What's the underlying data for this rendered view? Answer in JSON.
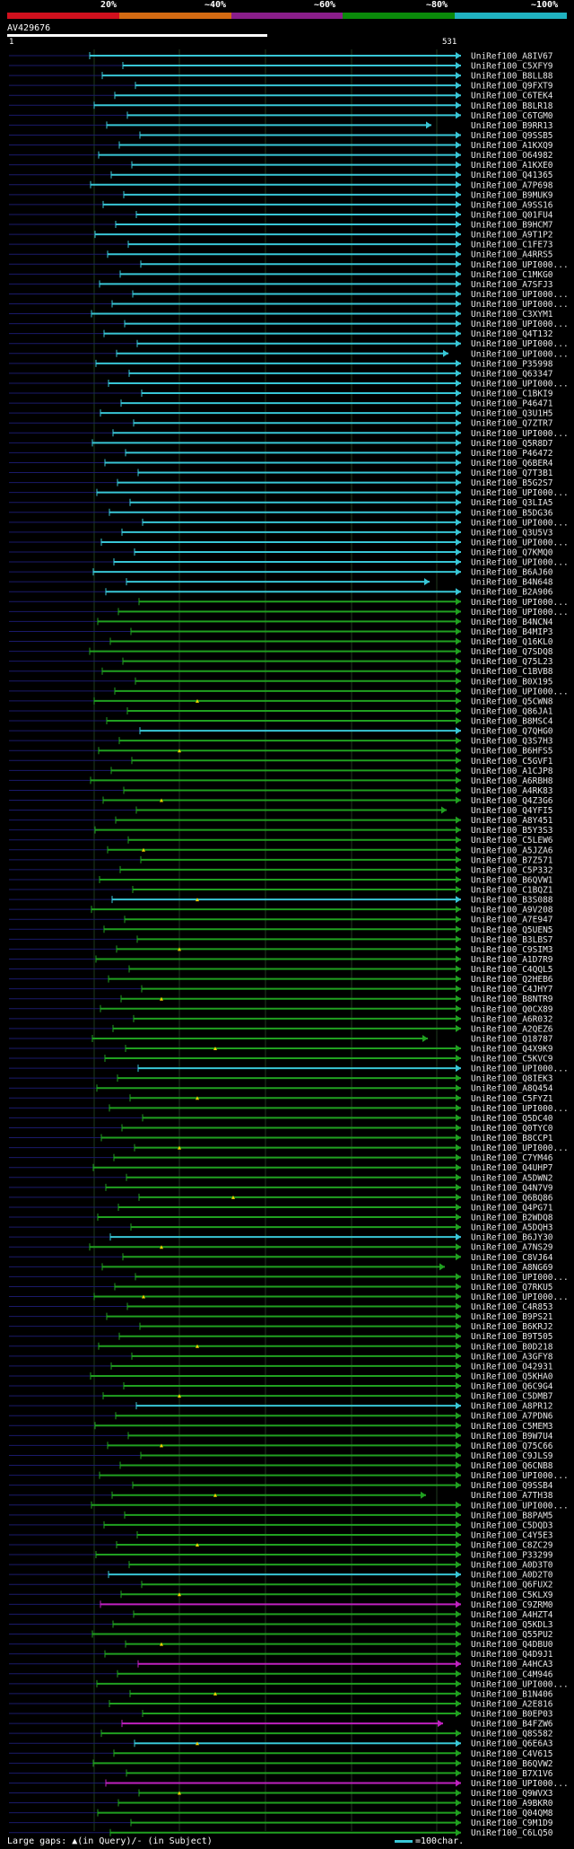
{
  "query": {
    "id": "AV429676",
    "start": "1",
    "end": "531"
  },
  "identity_legend": [
    {
      "label": "20%",
      "color": "#d0101d"
    },
    {
      "label": "~40%",
      "color": "#d46a12"
    },
    {
      "label": "~60%",
      "color": "#8a1e8a"
    },
    {
      "label": "~80%",
      "color": "#0a8a0a"
    },
    {
      "label": "~100%",
      "color": "#20b2c0"
    }
  ],
  "footer": {
    "gaps_text": "Large gaps: ▲(in Query)/- (in Subject)",
    "scale_text": "=100char."
  },
  "hits": [
    "UniRef100_A8IV67",
    "UniRef100_C5XFY9",
    "UniRef100_B8LL88",
    "UniRef100_Q9FXT9",
    "UniRef100_C6TEK4",
    "UniRef100_B8LR18",
    "UniRef100_C6TGM0",
    "UniRef100_B9RR13",
    "UniRef100_Q9SSB5",
    "UniRef100_A1KXQ9",
    "UniRef100_O64982",
    "UniRef100_A1KXE0",
    "UniRef100_Q41365",
    "UniRef100_A7P698",
    "UniRef100_B9MUK9",
    "UniRef100_A9SS16",
    "UniRef100_Q01FU4",
    "UniRef100_B9HCM7",
    "UniRef100_A9T1P2",
    "UniRef100_C1FE73",
    "UniRef100_A4RRS5",
    "UniRef100_UPI000...",
    "UniRef100_C1MKG0",
    "UniRef100_A7SFJ3",
    "UniRef100_UPI000...",
    "UniRef100_UPI000...",
    "UniRef100_C3XYM1",
    "UniRef100_UPI000...",
    "UniRef100_Q4T132",
    "UniRef100_UPI000...",
    "UniRef100_UPI000...",
    "UniRef100_P35998",
    "UniRef100_Q63347",
    "UniRef100_UPI000...",
    "UniRef100_C1BKI9",
    "UniRef100_P46471",
    "UniRef100_Q3U1H5",
    "UniRef100_Q7ZTR7",
    "UniRef100_UPI000...",
    "UniRef100_Q5R8D7",
    "UniRef100_P46472",
    "UniRef100_Q6BER4",
    "UniRef100_Q7T3B1",
    "UniRef100_B5G2S7",
    "UniRef100_UPI000...",
    "UniRef100_Q3LIA5",
    "UniRef100_B5DG36",
    "UniRef100_UPI000...",
    "UniRef100_Q3U5V3",
    "UniRef100_UPI000...",
    "UniRef100_Q7KMQ0",
    "UniRef100_UPI000...",
    "UniRef100_B6AJ60",
    "UniRef100_B4N648",
    "UniRef100_B2A906",
    "UniRef100_UPI000...",
    "UniRef100_UPI000...",
    "UniRef100_B4NCN4",
    "UniRef100_B4MIP3",
    "UniRef100_Q16KL0",
    "UniRef100_Q7SDQ8",
    "UniRef100_Q75L23",
    "UniRef100_C1BVB8",
    "UniRef100_B0X195",
    "UniRef100_UPI000...",
    "UniRef100_Q5CWN8",
    "UniRef100_Q86JA1",
    "UniRef100_B8MSC4",
    "UniRef100_Q7QHG0",
    "UniRef100_Q3S7H3",
    "UniRef100_B6HFS5",
    "UniRef100_C5GVF1",
    "UniRef100_A1CJP8",
    "UniRef100_A6RBH8",
    "UniRef100_A4RK83",
    "UniRef100_Q4Z3G6",
    "UniRef100_Q4YFI5",
    "UniRef100_A8Y451",
    "UniRef100_B5Y3S3",
    "UniRef100_C5LEW6",
    "UniRef100_A5JZA6",
    "UniRef100_B7Z571",
    "UniRef100_C5P332",
    "UniRef100_B6QVW1",
    "UniRef100_C1BQZ1",
    "UniRef100_B3S088",
    "UniRef100_A9V208",
    "UniRef100_A7E947",
    "UniRef100_Q5UEN5",
    "UniRef100_B3LBS7",
    "UniRef100_C9SIM3",
    "UniRef100_A1D7R9",
    "UniRef100_C4QQL5",
    "UniRef100_Q2HEB6",
    "UniRef100_C4JHY7",
    "UniRef100_B8NTR9",
    "UniRef100_Q0CX89",
    "UniRef100_A6R032",
    "UniRef100_A2QEZ6",
    "UniRef100_Q18787",
    "UniRef100_Q4X9K9",
    "UniRef100_C5KVC9",
    "UniRef100_UPI000...",
    "UniRef100_Q8IEK3",
    "UniRef100_A8Q454",
    "UniRef100_C5FYZ1",
    "UniRef100_UPI000...",
    "UniRef100_Q5DC40",
    "UniRef100_Q0TYC0",
    "UniRef100_B8CCP1",
    "UniRef100_UPI000...",
    "UniRef100_C7YM46",
    "UniRef100_Q4UHP7",
    "UniRef100_A5DWN2",
    "UniRef100_Q4N7V9",
    "UniRef100_Q6BQ86",
    "UniRef100_Q4PG71",
    "UniRef100_B2WDQ8",
    "UniRef100_A5DQH3",
    "UniRef100_B6JY30",
    "UniRef100_A7NS29",
    "UniRef100_C8VJ64",
    "UniRef100_A8NG69",
    "UniRef100_UPI000...",
    "UniRef100_Q7RKU5",
    "UniRef100_UPI000...",
    "UniRef100_C4R853",
    "UniRef100_B9PS21",
    "UniRef100_B6KRJ2",
    "UniRef100_B9T505",
    "UniRef100_B0D218",
    "UniRef100_A3GFY8",
    "UniRef100_O42931",
    "UniRef100_Q5KHA0",
    "UniRef100_Q6C9G4",
    "UniRef100_C5DMB7",
    "UniRef100_A8PR12",
    "UniRef100_A7PDN6",
    "UniRef100_C5MEM3",
    "UniRef100_B9W7U4",
    "UniRef100_Q75C66",
    "UniRef100_C9JLS9",
    "UniRef100_Q6CNB8",
    "UniRef100_UPI000...",
    "UniRef100_Q9SSB4",
    "UniRef100_A7TH38",
    "UniRef100_UPI000...",
    "UniRef100_B8PAM5",
    "UniRef100_C5DQD3",
    "UniRef100_C4Y5E3",
    "UniRef100_C8ZC29",
    "UniRef100_P33299",
    "UniRef100_A0D3T0",
    "UniRef100_A0D2T0",
    "UniRef100_Q6FUX2",
    "UniRef100_C5KLX9",
    "UniRef100_C9ZRM0",
    "UniRef100_A4HZT4",
    "UniRef100_Q5KDL3",
    "UniRef100_Q55PU2",
    "UniRef100_Q4DBU0",
    "UniRef100_Q4D9J1",
    "UniRef100_A4HCA3",
    "UniRef100_C4M946",
    "UniRef100_UPI000...",
    "UniRef100_B1N406",
    "UniRef100_A2E816",
    "UniRef100_B0EP03",
    "UniRef100_B4FZW6",
    "UniRef100_Q8S582",
    "UniRef100_Q6E6A3",
    "UniRef100_C4V615",
    "UniRef100_B6QVW2",
    "UniRef100_B7X1V6",
    "UniRef100_UPI000...",
    "UniRef100_Q9WVX3",
    "UniRef100_A9BKR0",
    "UniRef100_Q04QM8",
    "UniRef100_C9M1D9",
    "UniRef100_C6LQ50"
  ]
}
